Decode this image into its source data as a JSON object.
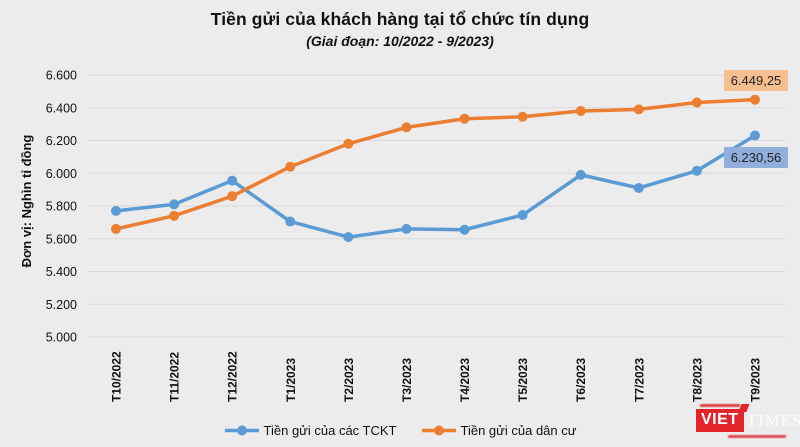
{
  "title": "Tiền gửi của khách hàng tại tổ chức tín dụng",
  "subtitle": "(Giai đoạn: 10/2022 - 9/2023)",
  "chart_data": {
    "type": "line",
    "title": "Tiền gửi của khách hàng tại tổ chức tín dụng",
    "subtitle": "(Giai đoạn: 10/2022 - 9/2023)",
    "categories": [
      "T10/2022",
      "T11/2022",
      "T12/2022",
      "T1/2023",
      "T2/2023",
      "T3/2023",
      "T4/2023",
      "T5/2023",
      "T6/2023",
      "T7/2023",
      "T8/2023",
      "T9/2023"
    ],
    "series": [
      {
        "name": "Tiền gửi của các TCKT",
        "color": "#5b9bd5",
        "values": [
          5770,
          5810,
          5955,
          5705,
          5610,
          5660,
          5655,
          5745,
          5990,
          5910,
          6015,
          6230.56
        ],
        "end_label": "6.230,56",
        "end_label_bg": "#92aedd"
      },
      {
        "name": "Tiền gửi của dân cư",
        "color": "#ed7d31",
        "values": [
          5660,
          5740,
          5860,
          6040,
          6180,
          6280,
          6333,
          6345,
          6380,
          6390,
          6432,
          6449.25
        ],
        "end_label": "6.449,25",
        "end_label_bg": "#f6bf90"
      }
    ],
    "xlabel": "",
    "ylabel": "Đơn vị: Nghìn tỉ đồng",
    "ylim": [
      5000,
      6600
    ],
    "yticks": [
      {
        "value": 6600,
        "label": "6.600"
      },
      {
        "value": 6400,
        "label": "6.400"
      },
      {
        "value": 6200,
        "label": "6.200"
      },
      {
        "value": 6000,
        "label": "6.000"
      },
      {
        "value": 5800,
        "label": "5.800"
      },
      {
        "value": 5600,
        "label": "5.600"
      },
      {
        "value": 5400,
        "label": "5.400"
      },
      {
        "value": 5200,
        "label": "5.200"
      },
      {
        "value": 5000,
        "label": "5.000"
      }
    ],
    "grid": true,
    "legend_position": "bottom"
  },
  "legend": {
    "items": [
      {
        "label": "Tiền gửi của các TCKT"
      },
      {
        "label": "Tiền gửi của dân cư"
      }
    ]
  },
  "logo": {
    "viet": "VIET",
    "times": "TIMES"
  },
  "colors": {
    "background": "#ececec",
    "gridline": "#d9d9d9",
    "series_blue": "#5b9bd5",
    "series_orange": "#ed7d31",
    "label_bg_blue": "#92aedd",
    "label_bg_orange": "#f6bf90",
    "logo_red": "#e2242b",
    "text": "#111111"
  }
}
